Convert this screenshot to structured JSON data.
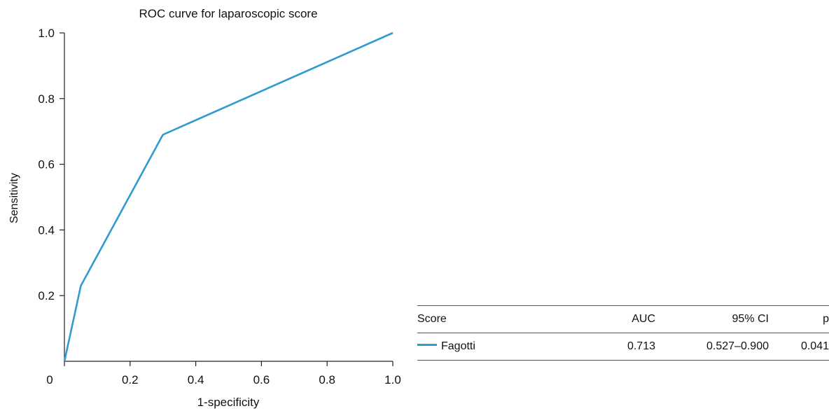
{
  "chart_data": {
    "type": "line",
    "title": "ROC curve for laparoscopic score",
    "xlabel": "1-specificity",
    "ylabel": "Sensitivity",
    "xlim": [
      0,
      1
    ],
    "ylim": [
      0,
      1
    ],
    "x_ticks": [
      "0",
      "0.2",
      "0.4",
      "0.6",
      "0.8",
      "1.0"
    ],
    "y_ticks": [
      "0.2",
      "0.4",
      "0.6",
      "0.8",
      "1.0"
    ],
    "grid": false,
    "series": [
      {
        "name": "Fagotti",
        "color": "#2f9bd1",
        "x": [
          0,
          0.05,
          0.3,
          1.0
        ],
        "y": [
          0,
          0.23,
          0.69,
          1.0
        ]
      }
    ]
  },
  "legend_table": {
    "headers": {
      "score": "Score",
      "auc": "AUC",
      "ci": "95% CI",
      "p": "p"
    },
    "rows": [
      {
        "score": "Fagotti",
        "auc": "0.713",
        "ci": "0.527–0.900",
        "p": "0.041",
        "color": "#2f9bd1"
      }
    ]
  }
}
